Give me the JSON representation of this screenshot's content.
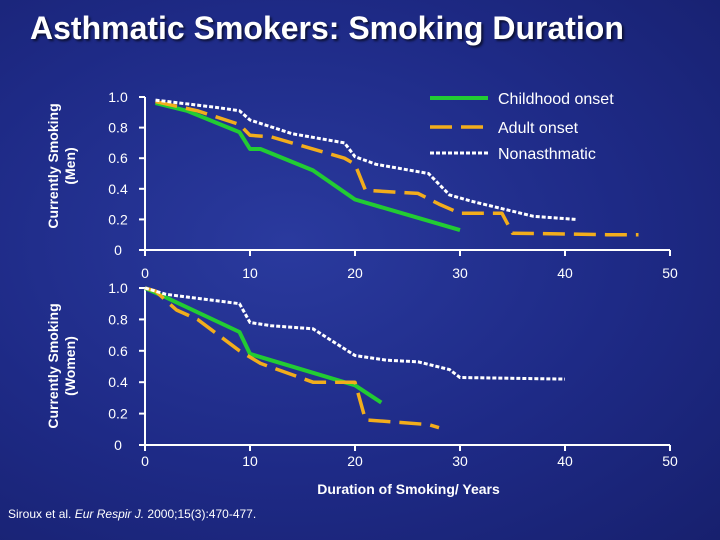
{
  "title": "Asthmatic Smokers: Smoking Duration",
  "citation": {
    "authors": "Siroux et al.",
    "journal": "Eur Respir J.",
    "details": "2000;15(3):470-477."
  },
  "colors": {
    "childhood": "#22cc33",
    "adult": "#f2ad1c",
    "nonasthmatic": "#ffffff",
    "axis": "#ffffff"
  },
  "chart_data": [
    {
      "type": "line",
      "panel": "men",
      "ylabel_line1": "Currently Smoking",
      "ylabel_line2": "(Men)",
      "xlim": [
        0,
        50
      ],
      "ylim": [
        0,
        1
      ],
      "x_ticks": [
        0,
        10,
        20,
        30,
        40,
        50
      ],
      "x_tick_labels": [
        "0",
        "10",
        "20",
        "30",
        "40",
        "50"
      ],
      "y_ticks": [
        0,
        0.2,
        0.4,
        0.6,
        0.8,
        1.0
      ],
      "y_tick_labels": [
        "0",
        "0.2",
        "0.4",
        "0.6",
        "0.8",
        "1.0"
      ],
      "series": [
        {
          "key": "childhood",
          "name": "Childhood onset",
          "style": "solid",
          "points": [
            [
              1,
              0.96
            ],
            [
              4,
              0.91
            ],
            [
              9,
              0.77
            ],
            [
              10,
              0.66
            ],
            [
              11,
              0.66
            ],
            [
              16,
              0.52
            ],
            [
              20,
              0.33
            ],
            [
              30,
              0.13
            ]
          ]
        },
        {
          "key": "adult",
          "name": "Adult onset",
          "style": "dashed",
          "points": [
            [
              1,
              0.97
            ],
            [
              5,
              0.91
            ],
            [
              9,
              0.82
            ],
            [
              10,
              0.75
            ],
            [
              12,
              0.74
            ],
            [
              19,
              0.6
            ],
            [
              20,
              0.56
            ],
            [
              21,
              0.39
            ],
            [
              26,
              0.37
            ],
            [
              28,
              0.3
            ],
            [
              30,
              0.24
            ],
            [
              34,
              0.24
            ],
            [
              35,
              0.11
            ],
            [
              44,
              0.1
            ],
            [
              44.5,
              0.1
            ],
            [
              45,
              0.1
            ],
            [
              47,
              0.1
            ]
          ]
        },
        {
          "key": "nonasthmatic",
          "name": "Nonasthmatic",
          "style": "dotted",
          "points": [
            [
              1,
              0.98
            ],
            [
              7,
              0.93
            ],
            [
              9,
              0.91
            ],
            [
              10,
              0.85
            ],
            [
              14,
              0.76
            ],
            [
              19,
              0.7
            ],
            [
              20,
              0.61
            ],
            [
              22,
              0.56
            ],
            [
              27,
              0.5
            ],
            [
              29,
              0.36
            ],
            [
              31,
              0.32
            ],
            [
              37,
              0.22
            ],
            [
              41,
              0.2
            ]
          ]
        }
      ]
    },
    {
      "type": "line",
      "panel": "women",
      "ylabel_line1": "Currently Smoking",
      "ylabel_line2": "(Women)",
      "xlabel": "Duration of Smoking/ Years",
      "xlim": [
        0,
        50
      ],
      "ylim": [
        0,
        1
      ],
      "x_ticks": [
        0,
        10,
        20,
        30,
        40,
        50
      ],
      "x_tick_labels": [
        "0",
        "10",
        "20",
        "30",
        "40",
        "50"
      ],
      "y_ticks": [
        0,
        0.2,
        0.4,
        0.6,
        0.8,
        1.0
      ],
      "y_tick_labels": [
        "0",
        "0.2",
        "0.4",
        "0.6",
        "0.8",
        "1.0"
      ],
      "series": [
        {
          "key": "childhood",
          "name": "Childhood onset",
          "style": "solid",
          "points": [
            [
              0,
              1.0
            ],
            [
              2,
              0.94
            ],
            [
              9,
              0.72
            ],
            [
              10,
              0.58
            ],
            [
              18,
              0.42
            ],
            [
              20,
              0.38
            ],
            [
              22.5,
              0.27
            ]
          ]
        },
        {
          "key": "adult",
          "name": "Adult onset",
          "style": "dashed",
          "points": [
            [
              0,
              1.0
            ],
            [
              1,
              0.98
            ],
            [
              3,
              0.86
            ],
            [
              5,
              0.8
            ],
            [
              9,
              0.6
            ],
            [
              11,
              0.52
            ],
            [
              16,
              0.4
            ],
            [
              19,
              0.4
            ],
            [
              20,
              0.4
            ],
            [
              21,
              0.16
            ],
            [
              27,
              0.13
            ],
            [
              28,
              0.11
            ]
          ]
        },
        {
          "key": "nonasthmatic",
          "name": "Nonasthmatic",
          "style": "dotted",
          "points": [
            [
              0,
              1.0
            ],
            [
              2,
              0.96
            ],
            [
              9,
              0.9
            ],
            [
              10,
              0.78
            ],
            [
              12,
              0.76
            ],
            [
              16,
              0.74
            ],
            [
              20,
              0.57
            ],
            [
              23,
              0.54
            ],
            [
              26,
              0.53
            ],
            [
              29,
              0.48
            ],
            [
              30,
              0.43
            ],
            [
              40,
              0.42
            ]
          ]
        }
      ]
    }
  ]
}
